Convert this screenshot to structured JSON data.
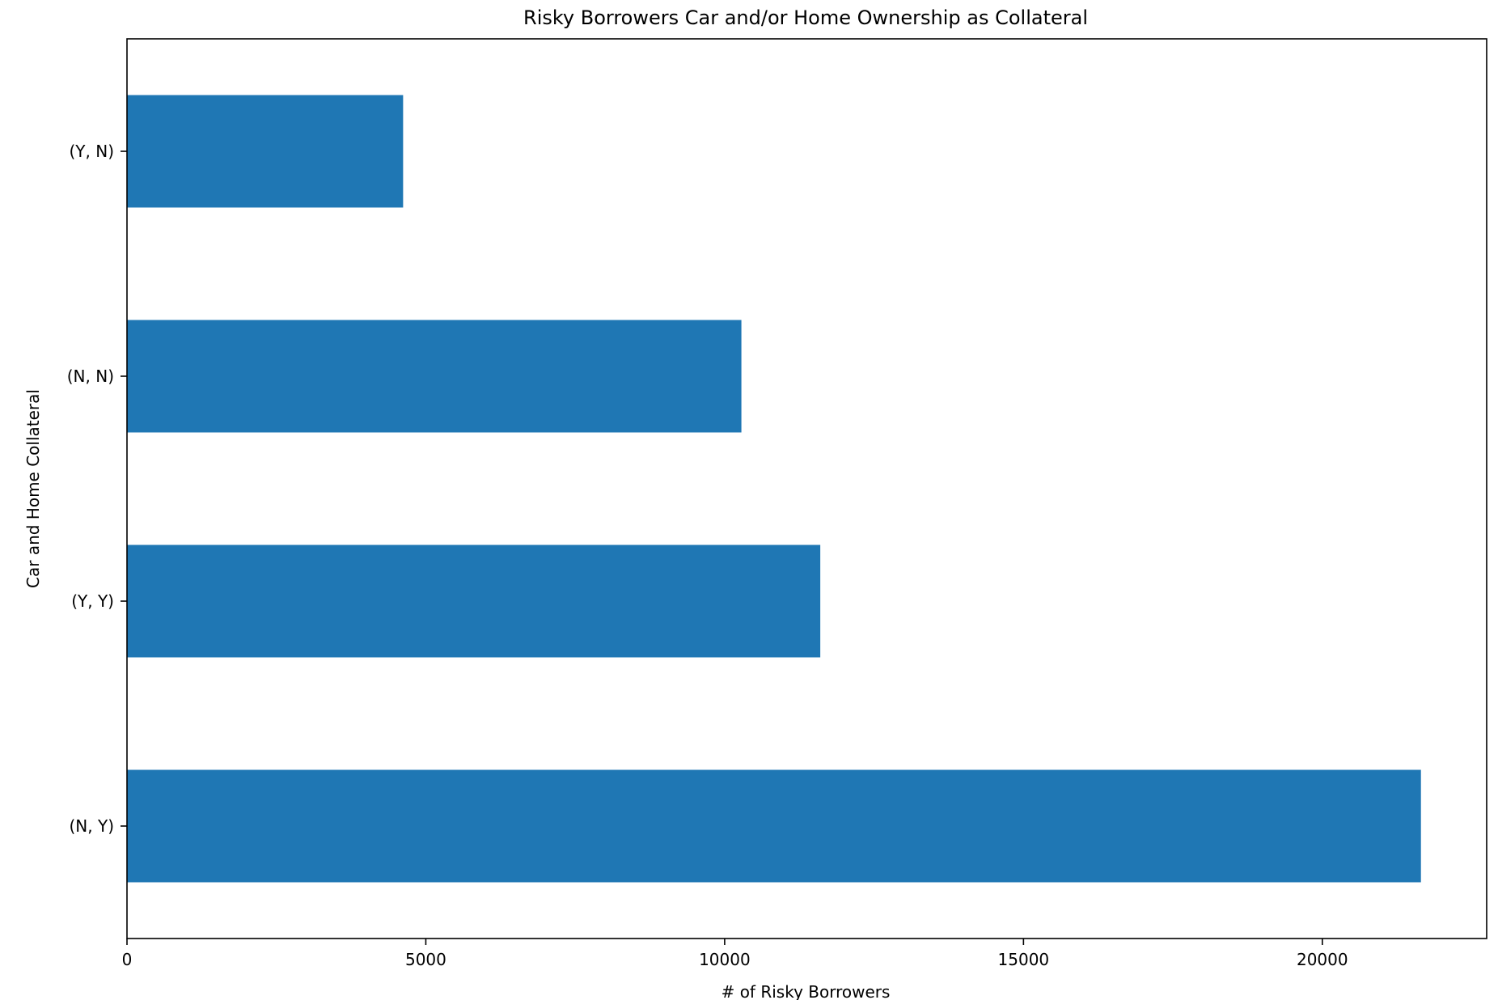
{
  "chart_data": {
    "type": "bar",
    "orientation": "horizontal",
    "title": "Risky Borrowers Car and/or Home Ownership as Collateral",
    "xlabel": "# of Risky Borrowers",
    "ylabel": "Car and Home Collateral",
    "categories": [
      "(N, Y)",
      "(Y, Y)",
      "(N, N)",
      "(Y, N)"
    ],
    "values": [
      21650,
      11600,
      10280,
      4620
    ],
    "xlim": [
      0,
      22750
    ],
    "xticks": [
      0,
      5000,
      10000,
      15000,
      20000
    ],
    "bar_color": "#1f77b4",
    "grid": false,
    "legend": "none"
  }
}
